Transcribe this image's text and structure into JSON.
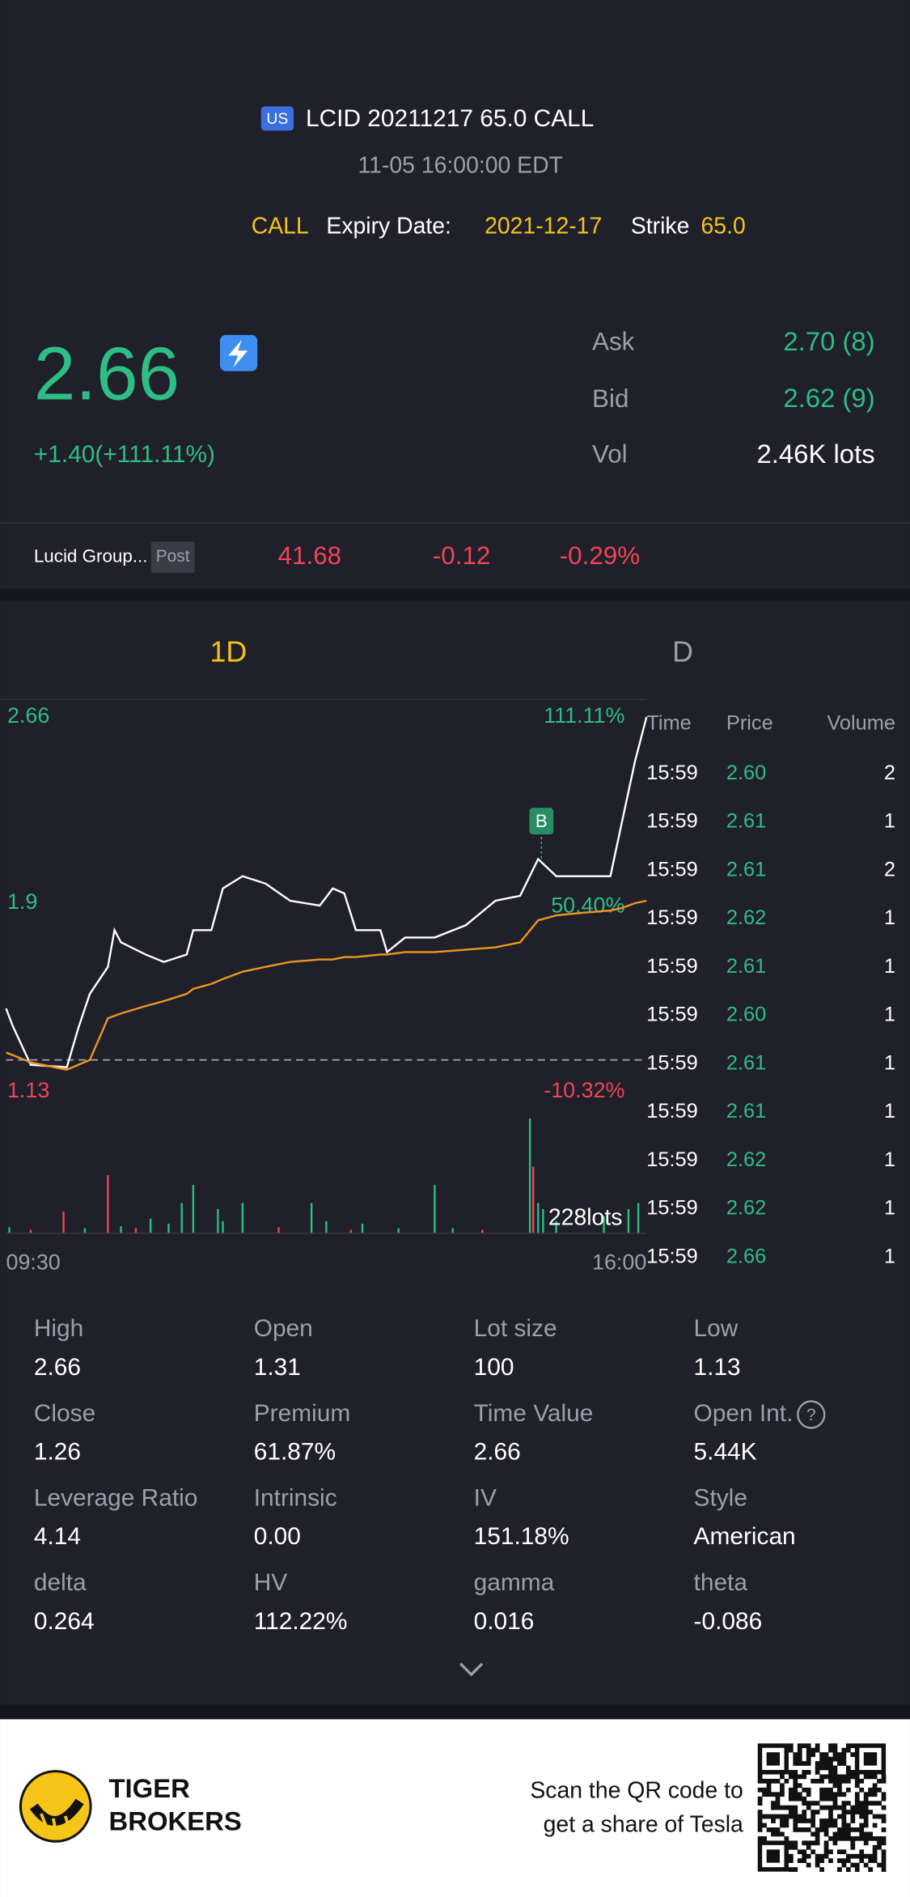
{
  "header": {
    "badge": "US",
    "title": "LCID 20211217 65.0 CALL",
    "subtitle": "11-05 16:00:00 EDT",
    "type": "CALL",
    "expiry_label": "Expiry Date:",
    "expiry": "2021-12-17",
    "strike_label": "Strike",
    "strike": "65.0"
  },
  "quote": {
    "price": "2.66",
    "change": "+1.40(+111.11%)",
    "rows": [
      {
        "label": "Ask",
        "value": "2.70 (8)"
      },
      {
        "label": "Bid",
        "value": "2.62 (9)"
      },
      {
        "label": "Vol",
        "value": "2.46K lots"
      }
    ]
  },
  "underlying": {
    "name": "Lucid Group...",
    "session": "Post",
    "price": "41.68",
    "change": "-0.12",
    "change_pct": "-0.29%"
  },
  "tabs": [
    "1D",
    "D"
  ],
  "chart_data": {
    "type": "line",
    "x": [
      "09:30",
      "09:34",
      "09:45",
      "10:07",
      "10:14",
      "10:21",
      "10:32",
      "10:36",
      "10:40",
      "10:55",
      "11:06",
      "11:20",
      "11:24",
      "11:35",
      "11:42",
      "11:54",
      "12:08",
      "12:23",
      "12:41",
      "12:49",
      "12:56",
      "13:03",
      "13:18",
      "13:22",
      "13:33",
      "13:51",
      "14:10",
      "14:28",
      "14:43",
      "14:54",
      "15:05",
      "15:20",
      "15:38",
      "15:45",
      "15:53",
      "16:00"
    ],
    "series": [
      {
        "color": "#ffffff",
        "values": [
          1.47,
          1.4,
          1.24,
          1.23,
          1.39,
          1.53,
          1.64,
          1.79,
          1.74,
          1.69,
          1.66,
          1.69,
          1.79,
          1.79,
          1.96,
          2.01,
          1.98,
          1.91,
          1.89,
          1.96,
          1.94,
          1.79,
          1.79,
          1.7,
          1.76,
          1.76,
          1.81,
          1.91,
          1.93,
          2.08,
          2.01,
          2.01,
          2.01,
          2.23,
          2.48,
          2.66
        ]
      },
      {
        "color": "#f0961e",
        "values": [
          1.29,
          1.28,
          1.25,
          1.22,
          1.24,
          1.26,
          1.43,
          1.44,
          1.45,
          1.48,
          1.5,
          1.53,
          1.55,
          1.57,
          1.59,
          1.62,
          1.64,
          1.66,
          1.67,
          1.67,
          1.68,
          1.68,
          1.69,
          1.69,
          1.7,
          1.7,
          1.71,
          1.72,
          1.74,
          1.83,
          1.85,
          1.86,
          1.87,
          1.88,
          1.9,
          1.91
        ]
      }
    ],
    "ylim": [
      1.13,
      2.66
    ],
    "yticks": [
      2.66,
      1.9,
      1.13
    ],
    "pct_labels": [
      "111.11%",
      "50.40%",
      "-10.32%"
    ],
    "ref_line": 1.26,
    "xticks": [
      "09:30",
      "16:00"
    ],
    "marker": {
      "label": "B",
      "x": "14:56",
      "value": 2.23
    },
    "volume": {
      "label": "228lots",
      "ylim": [
        0,
        228
      ],
      "x": [
        "09:32",
        "09:45",
        "10:05",
        "10:18",
        "10:32",
        "10:40",
        "10:49",
        "10:58",
        "11:09",
        "11:17",
        "11:24",
        "11:39",
        "11:42",
        "11:54",
        "12:16",
        "12:36",
        "12:45",
        "13:00",
        "13:07",
        "13:29",
        "13:51",
        "14:02",
        "14:20",
        "14:49",
        "14:51",
        "14:54",
        "14:57",
        "15:05",
        "15:34",
        "15:49",
        "15:55"
      ],
      "values": [
        12,
        7,
        43,
        10,
        115,
        14,
        10,
        29,
        19,
        60,
        96,
        48,
        24,
        60,
        12,
        60,
        24,
        7,
        19,
        10,
        96,
        10,
        7,
        228,
        132,
        60,
        48,
        24,
        34,
        48,
        60
      ],
      "colors": [
        "#2ebd85",
        "#f0435a",
        "#f0435a",
        "#2ebd85",
        "#f0435a",
        "#2ebd85",
        "#f0435a",
        "#2ebd85",
        "#2ebd85",
        "#2ebd85",
        "#2ebd85",
        "#2ebd85",
        "#2ebd85",
        "#2ebd85",
        "#f0435a",
        "#2ebd85",
        "#2ebd85",
        "#f0435a",
        "#2ebd85",
        "#2ebd85",
        "#2ebd85",
        "#2ebd85",
        "#f0435a",
        "#2ebd85",
        "#f0435a",
        "#2ebd85",
        "#2ebd85",
        "#2ebd85",
        "#2ebd85",
        "#2ebd85",
        "#2ebd85"
      ]
    }
  },
  "trades": {
    "columns": [
      "Time",
      "Price",
      "Volume"
    ],
    "rows": [
      [
        "15:59",
        "2.60",
        "2"
      ],
      [
        "15:59",
        "2.61",
        "1"
      ],
      [
        "15:59",
        "2.61",
        "2"
      ],
      [
        "15:59",
        "2.62",
        "1"
      ],
      [
        "15:59",
        "2.61",
        "1"
      ],
      [
        "15:59",
        "2.60",
        "1"
      ],
      [
        "15:59",
        "2.61",
        "1"
      ],
      [
        "15:59",
        "2.61",
        "1"
      ],
      [
        "15:59",
        "2.62",
        "1"
      ],
      [
        "15:59",
        "2.62",
        "1"
      ],
      [
        "15:59",
        "2.66",
        "1"
      ]
    ]
  },
  "stats": [
    [
      {
        "label": "High",
        "value": "2.66"
      },
      {
        "label": "Open",
        "value": "1.31"
      },
      {
        "label": "Lot size",
        "value": "100"
      },
      {
        "label": "Low",
        "value": "1.13"
      }
    ],
    [
      {
        "label": "Close",
        "value": "1.26"
      },
      {
        "label": "Premium",
        "value": "61.87%"
      },
      {
        "label": "Time Value",
        "value": "2.66"
      },
      {
        "label": "Open Int.",
        "value": "5.44K"
      }
    ],
    [
      {
        "label": "Leverage Ratio",
        "value": "4.14"
      },
      {
        "label": "Intrinsic",
        "value": "0.00"
      },
      {
        "label": "IV",
        "value": "151.18%"
      },
      {
        "label": "Style",
        "value": "American"
      }
    ],
    [
      {
        "label": "delta",
        "value": "0.264"
      },
      {
        "label": "HV",
        "value": "112.22%"
      },
      {
        "label": "gamma",
        "value": "0.016"
      },
      {
        "label": "theta",
        "value": "-0.086"
      }
    ]
  ],
  "footer": {
    "brand": [
      "TIGER",
      "BROKERS"
    ],
    "promo": [
      "Scan the QR code to",
      "get a share of Tesla"
    ]
  }
}
